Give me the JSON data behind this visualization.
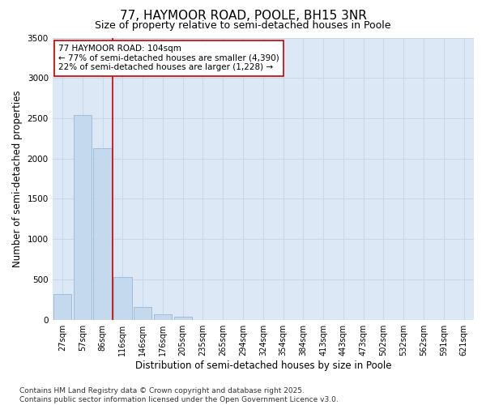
{
  "title_line1": "77, HAYMOOR ROAD, POOLE, BH15 3NR",
  "title_line2": "Size of property relative to semi-detached houses in Poole",
  "xlabel": "Distribution of semi-detached houses by size in Poole",
  "ylabel": "Number of semi-detached properties",
  "categories": [
    "27sqm",
    "57sqm",
    "86sqm",
    "116sqm",
    "146sqm",
    "176sqm",
    "205sqm",
    "235sqm",
    "265sqm",
    "294sqm",
    "324sqm",
    "354sqm",
    "384sqm",
    "413sqm",
    "443sqm",
    "473sqm",
    "502sqm",
    "532sqm",
    "562sqm",
    "591sqm",
    "621sqm"
  ],
  "values": [
    320,
    2540,
    2130,
    530,
    160,
    65,
    40,
    0,
    0,
    0,
    0,
    0,
    0,
    0,
    0,
    0,
    0,
    0,
    0,
    0,
    0
  ],
  "bar_color": "#c5d9ee",
  "bar_edge_color": "#8ab0d0",
  "grid_color": "#c8d8ea",
  "background_color": "#dce8f5",
  "vline_x": 2.5,
  "vline_color": "#cc0000",
  "ylim": [
    0,
    3500
  ],
  "yticks": [
    0,
    500,
    1000,
    1500,
    2000,
    2500,
    3000,
    3500
  ],
  "annotation_title": "77 HAYMOOR ROAD: 104sqm",
  "annotation_line2": "← 77% of semi-detached houses are smaller (4,390)",
  "annotation_line3": "22% of semi-detached houses are larger (1,228) →",
  "footnote1": "Contains HM Land Registry data © Crown copyright and database right 2025.",
  "footnote2": "Contains public sector information licensed under the Open Government Licence v3.0.",
  "title_fontsize": 11,
  "subtitle_fontsize": 9,
  "axis_label_fontsize": 8.5,
  "tick_fontsize": 7,
  "annotation_fontsize": 7.5,
  "footnote_fontsize": 6.5
}
